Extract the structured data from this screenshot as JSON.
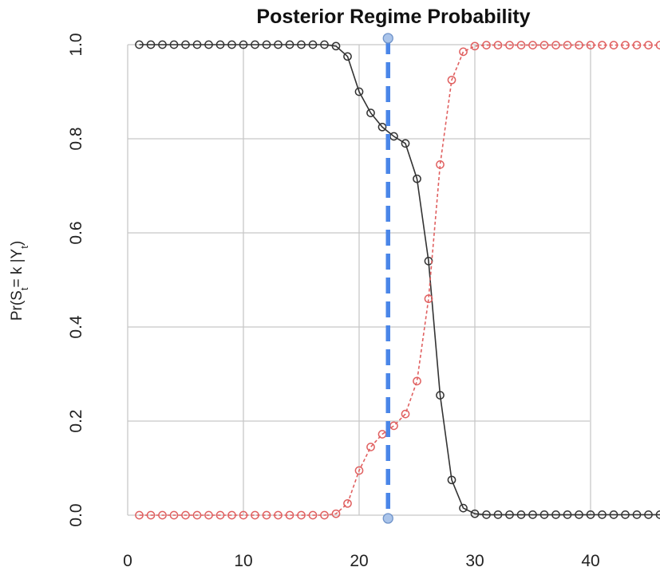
{
  "chart_data": {
    "type": "line",
    "title": "Posterior Regime Probability",
    "xlabel": "",
    "ylabel": "Pr(S_t = k | Y_t)",
    "ylabel_parts": {
      "pre": "Pr(S",
      "sub1": "t",
      "mid": "= k |Y",
      "sub2": "t",
      "post": ")"
    },
    "xlim": [
      0,
      46
    ],
    "ylim": [
      0,
      1
    ],
    "x_ticks": [
      0,
      10,
      20,
      30,
      40
    ],
    "x_tick_labels": [
      "0",
      "10",
      "20",
      "30",
      "40"
    ],
    "y_ticks": [
      0,
      0.2,
      0.4,
      0.6,
      0.8,
      1.0
    ],
    "y_tick_labels": [
      "0.0",
      "0.2",
      "0.4",
      "0.6",
      "0.8",
      "1.0"
    ],
    "grid": true,
    "x": [
      1,
      2,
      3,
      4,
      5,
      6,
      7,
      8,
      9,
      10,
      11,
      12,
      13,
      14,
      15,
      16,
      17,
      18,
      19,
      20,
      21,
      22,
      23,
      24,
      25,
      26,
      27,
      28,
      29,
      30,
      31,
      32,
      33,
      34,
      35,
      36,
      37,
      38,
      39,
      40,
      41,
      42,
      43,
      44,
      45,
      46
    ],
    "series": [
      {
        "color": "#333333",
        "line_style": "solid",
        "marker": "open-circle",
        "values": [
          1,
          1,
          1,
          1,
          1,
          1,
          1,
          1,
          1,
          1,
          1,
          1,
          1,
          1,
          1,
          1,
          1,
          0.997,
          0.975,
          0.9,
          0.855,
          0.825,
          0.805,
          0.79,
          0.715,
          0.54,
          0.255,
          0.075,
          0.015,
          0.003,
          0.001,
          0.001,
          0.001,
          0.001,
          0.001,
          0.001,
          0.001,
          0.001,
          0.001,
          0.001,
          0.001,
          0.001,
          0.001,
          0.001,
          0.001,
          0.001
        ]
      },
      {
        "color": "#e06060",
        "line_style": "dashed",
        "marker": "open-circle",
        "values": [
          0,
          0,
          0,
          0,
          0,
          0,
          0,
          0,
          0,
          0,
          0,
          0,
          0,
          0,
          0,
          0,
          0,
          0.003,
          0.025,
          0.095,
          0.145,
          0.172,
          0.19,
          0.215,
          0.285,
          0.46,
          0.745,
          0.925,
          0.985,
          0.997,
          0.999,
          0.999,
          0.999,
          0.999,
          0.999,
          0.999,
          0.999,
          0.999,
          0.999,
          0.999,
          0.999,
          0.999,
          0.999,
          0.999,
          0.999,
          0.999
        ]
      }
    ],
    "vertical_marker": {
      "x": 22.5,
      "color": "#4a86e8",
      "line_style": "dashed",
      "handle_color": "#aac4ea",
      "interactive": true
    }
  }
}
